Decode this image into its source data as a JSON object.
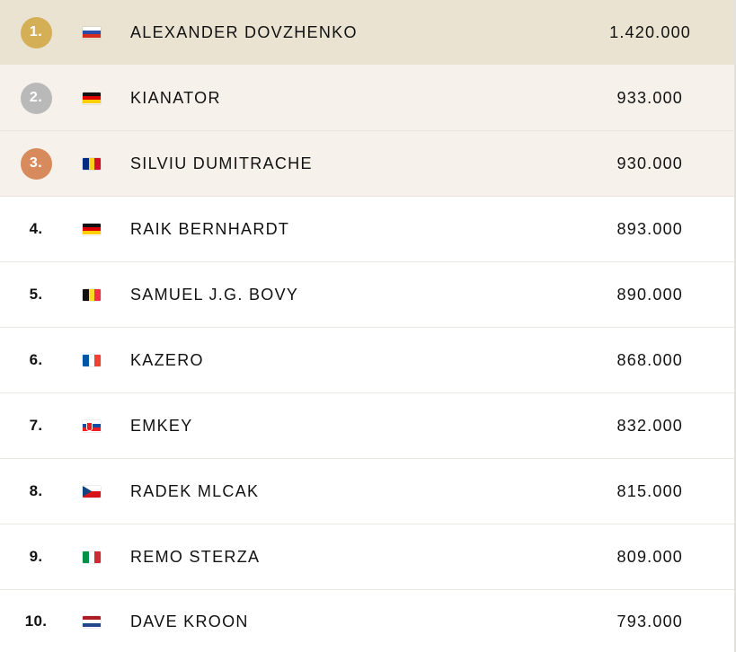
{
  "rows": [
    {
      "rank": "1.",
      "name": "ALEXANDER DOVZHENKO",
      "score": "1.420.000",
      "flag": "russia-flag-icon",
      "medal": "gold",
      "medal_color": "#d4af55"
    },
    {
      "rank": "2.",
      "name": "KIANATOR",
      "score": "933.000",
      "flag": "germany-flag-icon",
      "medal": "silver",
      "medal_color": "#b9b9b9"
    },
    {
      "rank": "3.",
      "name": "SILVIU DUMITRACHE",
      "score": "930.000",
      "flag": "romania-flag-icon",
      "medal": "bronze",
      "medal_color": "#d78b5c"
    },
    {
      "rank": "4.",
      "name": "RAIK BERNHARDT",
      "score": "893.000",
      "flag": "germany-flag-icon"
    },
    {
      "rank": "5.",
      "name": "SAMUEL J.G. BOVY",
      "score": "890.000",
      "flag": "belgium-flag-icon"
    },
    {
      "rank": "6.",
      "name": "KAZERO",
      "score": "868.000",
      "flag": "france-flag-icon"
    },
    {
      "rank": "7.",
      "name": "EMKEY",
      "score": "832.000",
      "flag": "slovakia-flag-icon"
    },
    {
      "rank": "8.",
      "name": "RADEK MLCAK",
      "score": "815.000",
      "flag": "czechia-flag-icon"
    },
    {
      "rank": "9.",
      "name": "REMO STERZA",
      "score": "809.000",
      "flag": "italy-flag-icon"
    },
    {
      "rank": "10.",
      "name": "DAVE KROON",
      "score": "793.000",
      "flag": "netherlands-flag-icon"
    }
  ],
  "colors": {
    "gold_row_bg": "#ebe3d2",
    "podium_row_bg": "#f6f1ea",
    "row_bg": "#ffffff"
  }
}
